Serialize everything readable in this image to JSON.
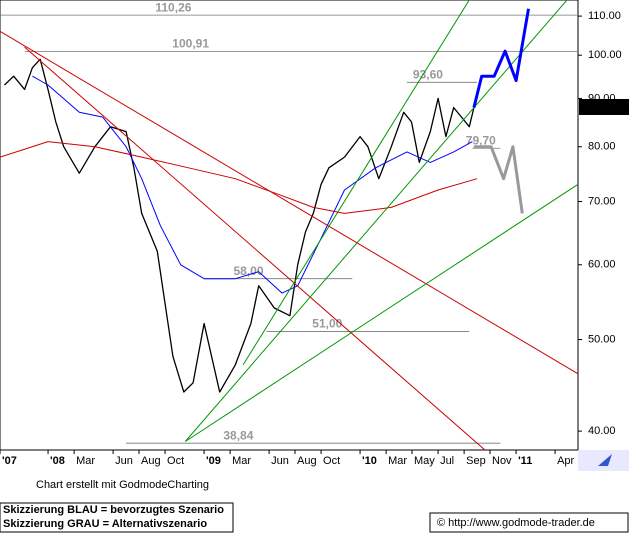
{
  "chart_data": {
    "type": "line",
    "log_scale": true,
    "xlim": [
      2007.692,
      2011.397
    ],
    "ylim": [
      38.2,
      114.4
    ],
    "yticks": [
      {
        "value": 40,
        "label": "40.00"
      },
      {
        "value": 50,
        "label": "50.00"
      },
      {
        "value": 60,
        "label": "60.00"
      },
      {
        "value": 70,
        "label": "70.00"
      },
      {
        "value": 80,
        "label": "80.00"
      },
      {
        "value": 90,
        "label": "90.00"
      },
      {
        "value": 100,
        "label": "100.00"
      },
      {
        "value": 110,
        "label": "110.00"
      }
    ],
    "xticks": [
      {
        "value": 2007.692,
        "label": "'07"
      },
      {
        "value": 2008.0,
        "label": "'08"
      },
      {
        "value": 2008.167,
        "label": "Mar"
      },
      {
        "value": 2008.417,
        "label": "Jun"
      },
      {
        "value": 2008.583,
        "label": "Aug"
      },
      {
        "value": 2008.75,
        "label": "Oct"
      },
      {
        "value": 2009.0,
        "label": "'09"
      },
      {
        "value": 2009.167,
        "label": "Mar"
      },
      {
        "value": 2009.417,
        "label": "Jun"
      },
      {
        "value": 2009.583,
        "label": "Aug"
      },
      {
        "value": 2009.75,
        "label": "Oct"
      },
      {
        "value": 2010.0,
        "label": "'10"
      },
      {
        "value": 2010.167,
        "label": "Mar"
      },
      {
        "value": 2010.333,
        "label": "May"
      },
      {
        "value": 2010.5,
        "label": "Jul"
      },
      {
        "value": 2010.667,
        "label": "Sep"
      },
      {
        "value": 2010.833,
        "label": "Nov"
      },
      {
        "value": 2011.0,
        "label": "'11"
      },
      {
        "value": 2011.25,
        "label": "Apr"
      }
    ],
    "series": [
      {
        "color": "#000000",
        "x": [
          2007.72,
          2007.78,
          2007.85,
          2007.9,
          2007.95,
          2008.0,
          2008.05,
          2008.1,
          2008.2,
          2008.3,
          2008.4,
          2008.5,
          2008.55,
          2008.6,
          2008.7,
          2008.8,
          2008.87,
          2008.93,
          2009.0,
          2009.1,
          2009.2,
          2009.3,
          2009.35,
          2009.45,
          2009.55,
          2009.6,
          2009.65,
          2009.7,
          2009.75,
          2009.8,
          2009.9,
          2010.0,
          2010.05,
          2010.12,
          2010.2,
          2010.28,
          2010.33,
          2010.38,
          2010.45,
          2010.5,
          2010.55,
          2010.6,
          2010.65,
          2010.7,
          2010.73
        ],
        "values": [
          93,
          95,
          92,
          97,
          99,
          92,
          85,
          80,
          75,
          80,
          84,
          83,
          76,
          68,
          62,
          48,
          44,
          45,
          52,
          44,
          47,
          52,
          57,
          54,
          53,
          60,
          65,
          68,
          73,
          76,
          78,
          82,
          80,
          74,
          80,
          87,
          85,
          77,
          83,
          90,
          82,
          88,
          86,
          84,
          88
        ]
      },
      {
        "color": "#0000ff",
        "x": [
          2007.9,
          2008.0,
          2008.2,
          2008.35,
          2008.5,
          2008.6,
          2008.72,
          2008.85,
          2009.0,
          2009.2,
          2009.35,
          2009.5,
          2009.6,
          2009.75,
          2009.9,
          2010.1,
          2010.3,
          2010.45,
          2010.6,
          2010.72
        ],
        "values": [
          95,
          93,
          87,
          86,
          80,
          74,
          66,
          60,
          58,
          58,
          59,
          56,
          57,
          64,
          72,
          76,
          79,
          77,
          79,
          81
        ]
      },
      {
        "color": "#cc0000",
        "x": [
          2007.692,
          2008.0,
          2008.3,
          2008.6,
          2008.9,
          2009.2,
          2009.5,
          2009.7,
          2009.9,
          2010.2,
          2010.5,
          2010.75
        ],
        "values": [
          78,
          81,
          80,
          78,
          76,
          74,
          71,
          69,
          68,
          69,
          72,
          74
        ]
      },
      {
        "color": "#cc0000",
        "x": [
          2007.692,
          2011.397
        ],
        "values": [
          106,
          46
        ]
      },
      {
        "color": "#cc0000",
        "x": [
          2007.85,
          2010.8
        ],
        "values": [
          102,
          38.2
        ]
      },
      {
        "color": "#009900",
        "x": [
          2008.88,
          2011.397
        ],
        "values": [
          39,
          118
        ]
      },
      {
        "color": "#009900",
        "x": [
          2008.88,
          2011.397
        ],
        "values": [
          39,
          73
        ]
      },
      {
        "color": "#009900",
        "x": [
          2009.25,
          2010.75
        ],
        "values": [
          47,
          118
        ]
      }
    ],
    "scenarios": [
      {
        "color": "#0000ff",
        "x": [
          2010.73,
          2010.78,
          2010.86,
          2010.93,
          2011.0,
          2011.08
        ],
        "values": [
          88,
          95,
          95,
          101,
          94,
          112
        ]
      },
      {
        "color": "#999999",
        "x": [
          2010.73,
          2010.84,
          2010.92,
          2010.98,
          2011.04
        ],
        "values": [
          80,
          80,
          74,
          80,
          68
        ]
      }
    ],
    "levels": [
      {
        "value": 110.26,
        "label": "110,26",
        "x": [
          2007.692,
          2011.397
        ]
      },
      {
        "value": 100.91,
        "label": "100,91",
        "x": [
          2007.85,
          2011.397
        ]
      },
      {
        "value": 93.6,
        "label": "93,60",
        "x": [
          2010.3,
          2010.75
        ]
      },
      {
        "value": 79.7,
        "label": "79,70",
        "x": [
          2010.72,
          2010.9
        ]
      },
      {
        "value": 58.0,
        "label": "58,00",
        "x": [
          2009.0,
          2009.95
        ]
      },
      {
        "value": 51.0,
        "label": "51,00",
        "x": [
          2009.4,
          2010.7
        ]
      },
      {
        "value": 38.84,
        "label": "38,84",
        "x": [
          2008.5,
          2010.9
        ]
      }
    ],
    "last_price": {
      "value": 88.14,
      "label": "88,14"
    },
    "footer": {
      "credit": "Chart erstellt mit GodmodeCharting",
      "legend_blue": "Skizzierung BLAU = bevorzugtes Szenario",
      "legend_gray": "Skizzierung GRAU = Alternativszenario",
      "url": "© http://www.godmode-trader.de"
    }
  }
}
